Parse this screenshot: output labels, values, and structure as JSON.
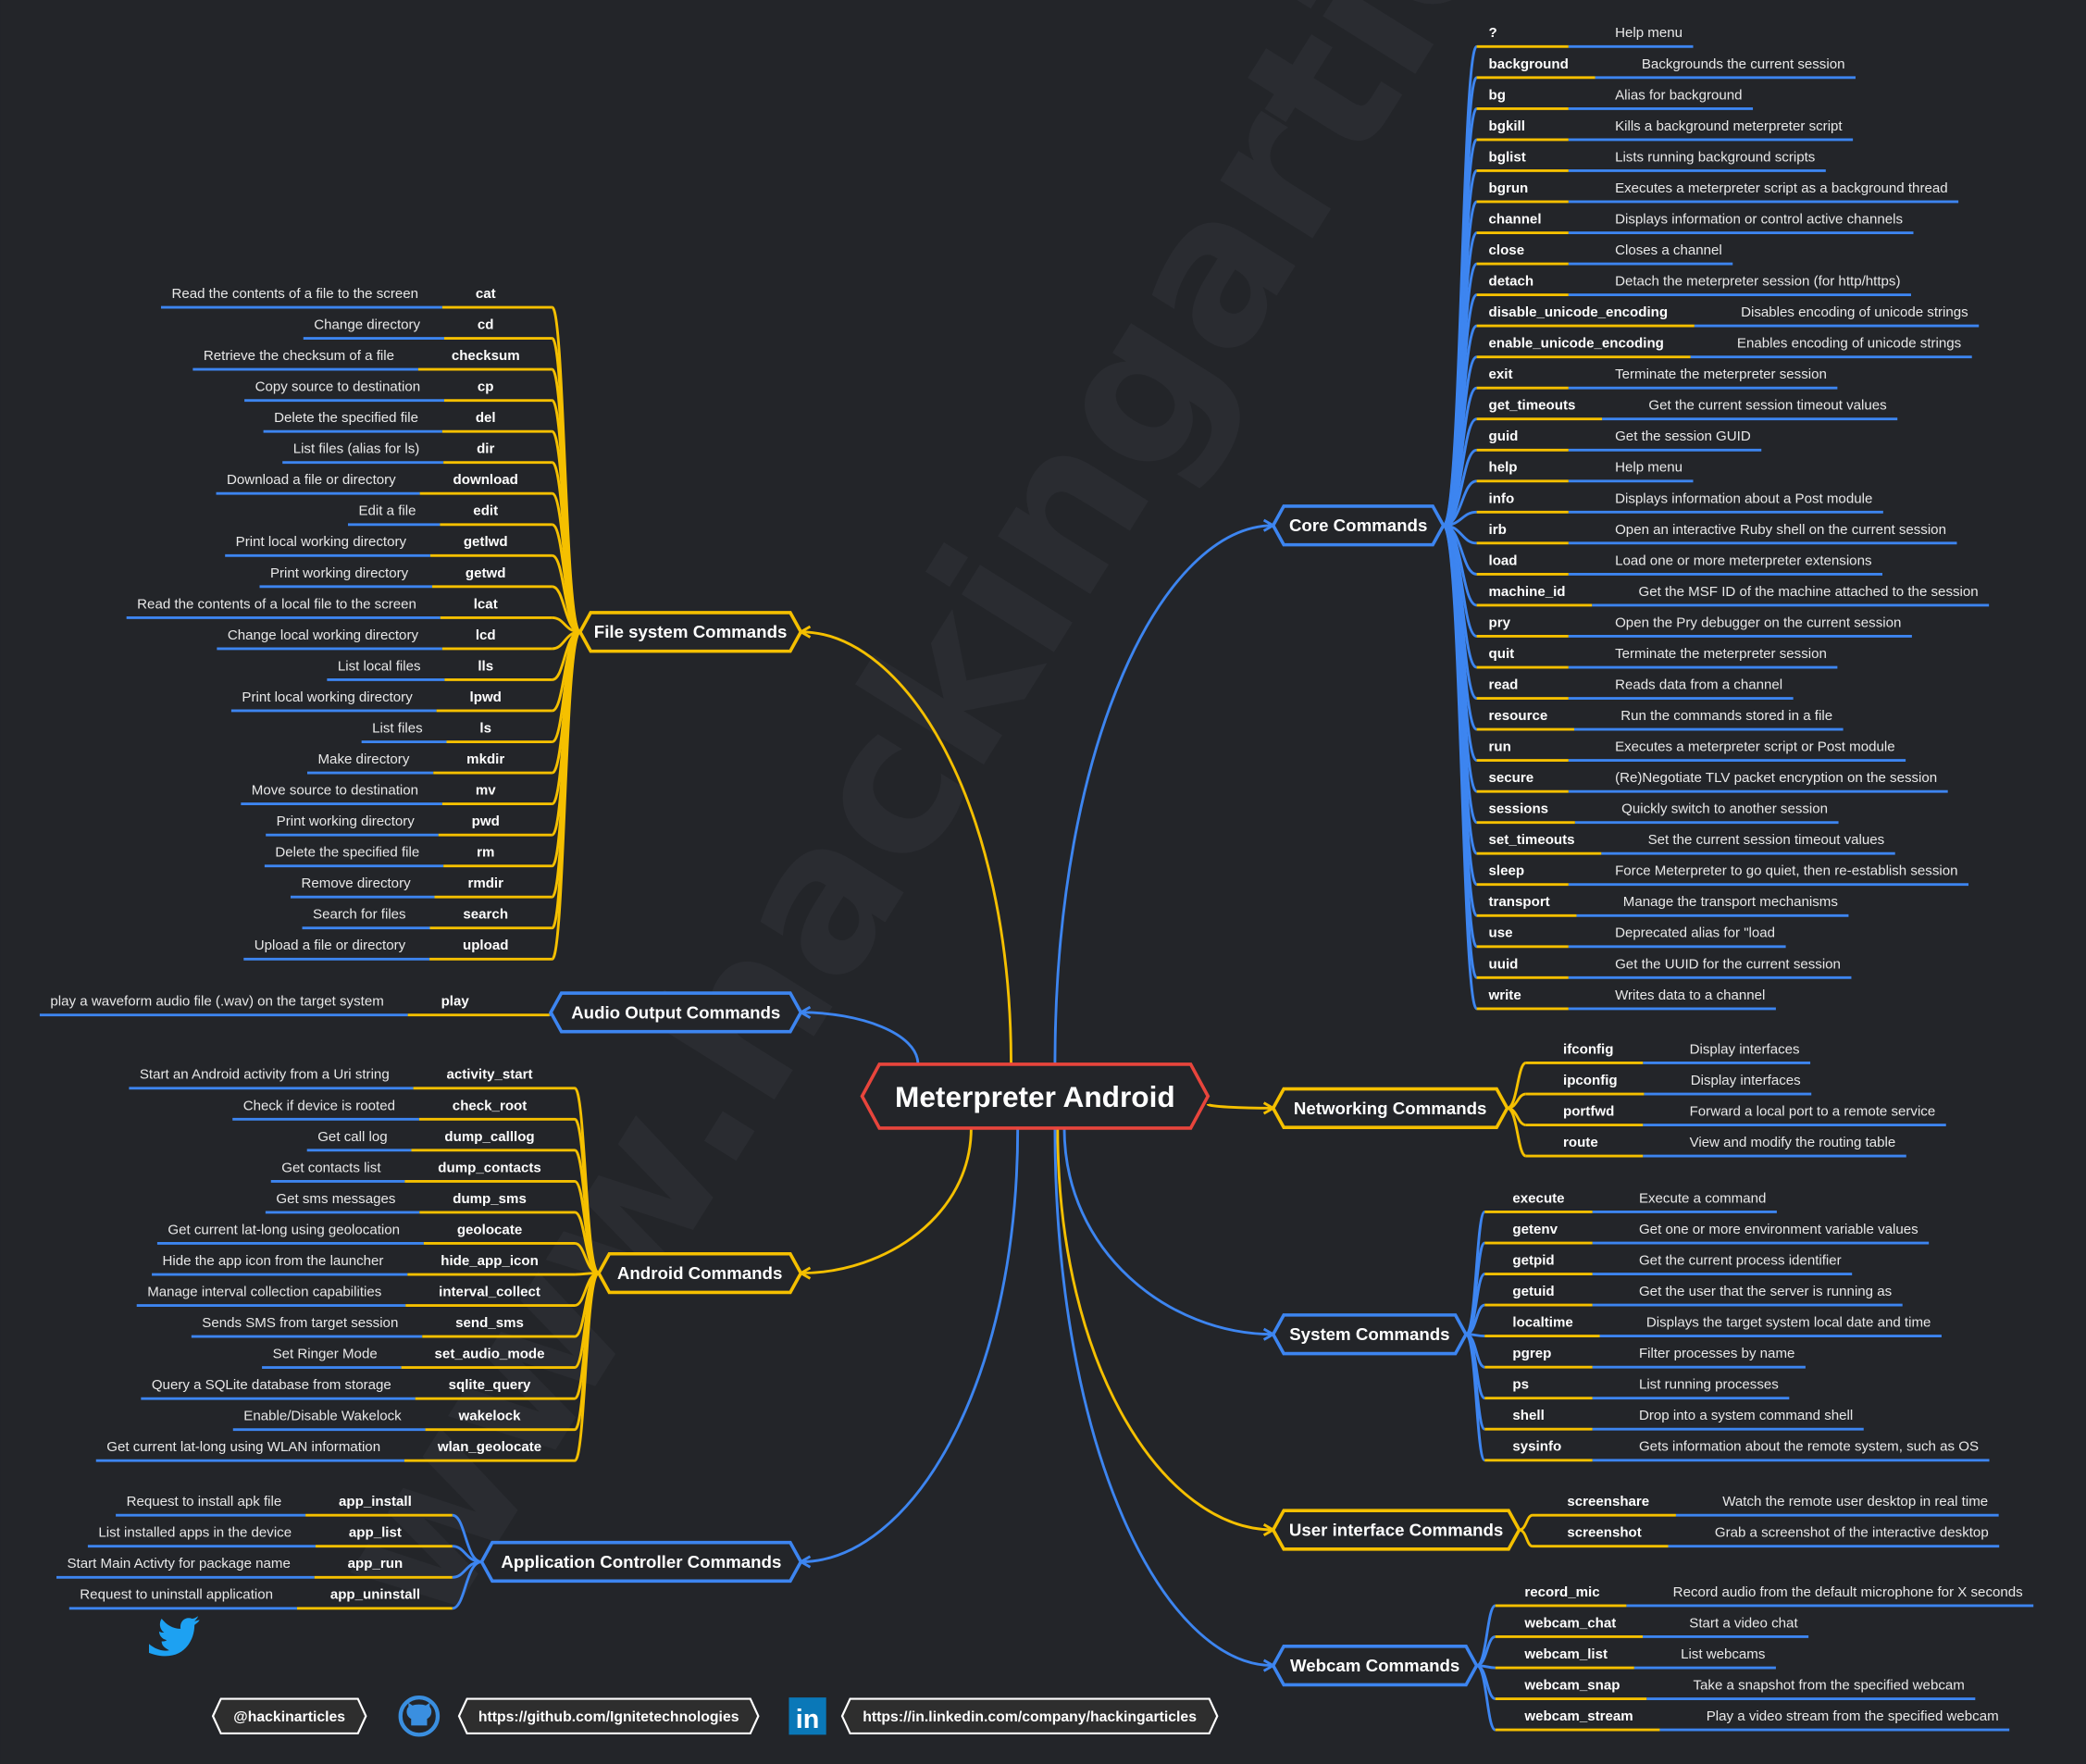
{
  "colors": {
    "background": "#232529",
    "gold": "#f5c000",
    "blue": "#3d85f0",
    "root_border": "#e8453c",
    "footer_border": "#ffffff",
    "twitter": "#1da1f2",
    "linkedin": "#0a78b8"
  },
  "watermark": "www.hackingarticles.in",
  "root": {
    "label": "Meterpreter Android"
  },
  "branches": {
    "core": {
      "label": "Core Commands",
      "color": "blue",
      "items": [
        {
          "cmd": "?",
          "desc": "Help menu"
        },
        {
          "cmd": "background",
          "desc": "Backgrounds the current session"
        },
        {
          "cmd": "bg",
          "desc": "Alias for background"
        },
        {
          "cmd": "bgkill",
          "desc": "Kills a background meterpreter script"
        },
        {
          "cmd": "bglist",
          "desc": "Lists running background scripts"
        },
        {
          "cmd": "bgrun",
          "desc": "Executes a meterpreter script as a background thread"
        },
        {
          "cmd": "channel",
          "desc": "Displays information or control active channels"
        },
        {
          "cmd": "close",
          "desc": "Closes a channel"
        },
        {
          "cmd": "detach",
          "desc": "Detach the meterpreter session (for http/https)"
        },
        {
          "cmd": "disable_unicode_encoding",
          "desc": "Disables encoding of unicode strings"
        },
        {
          "cmd": "enable_unicode_encoding",
          "desc": "Enables encoding of unicode strings"
        },
        {
          "cmd": "exit",
          "desc": "Terminate the meterpreter session"
        },
        {
          "cmd": "get_timeouts",
          "desc": "Get the current session timeout values"
        },
        {
          "cmd": "guid",
          "desc": "Get the session GUID"
        },
        {
          "cmd": "help",
          "desc": "Help menu"
        },
        {
          "cmd": "info",
          "desc": "Displays information about a Post module"
        },
        {
          "cmd": "irb",
          "desc": "Open an interactive Ruby shell on the current session"
        },
        {
          "cmd": "load",
          "desc": "Load one or more meterpreter extensions"
        },
        {
          "cmd": "machine_id",
          "desc": "Get the MSF ID of the machine attached to the session"
        },
        {
          "cmd": "pry",
          "desc": "Open the Pry debugger on the current session"
        },
        {
          "cmd": "quit",
          "desc": "Terminate the meterpreter session"
        },
        {
          "cmd": "read",
          "desc": "Reads data from a channel"
        },
        {
          "cmd": "resource",
          "desc": "Run the commands stored in a file"
        },
        {
          "cmd": "run",
          "desc": "Executes a meterpreter script or Post module"
        },
        {
          "cmd": "secure",
          "desc": "(Re)Negotiate TLV packet encryption on the session"
        },
        {
          "cmd": "sessions",
          "desc": "Quickly switch to another session"
        },
        {
          "cmd": "set_timeouts",
          "desc": "Set the current session timeout values"
        },
        {
          "cmd": "sleep",
          "desc": "Force Meterpreter to go quiet, then re-establish session"
        },
        {
          "cmd": "transport",
          "desc": "Manage the transport mechanisms"
        },
        {
          "cmd": "use",
          "desc": "Deprecated alias for \"load"
        },
        {
          "cmd": "uuid",
          "desc": "Get the UUID for the current session"
        },
        {
          "cmd": "write",
          "desc": "Writes data to a channel"
        }
      ]
    },
    "networking": {
      "label": "Networking Commands",
      "color": "gold",
      "items": [
        {
          "cmd": "ifconfig",
          "desc": "Display interfaces"
        },
        {
          "cmd": "ipconfig",
          "desc": "Display interfaces"
        },
        {
          "cmd": "portfwd",
          "desc": "Forward a local port to a remote service"
        },
        {
          "cmd": "route",
          "desc": "View and modify the routing table"
        }
      ]
    },
    "system": {
      "label": "System Commands",
      "color": "blue",
      "items": [
        {
          "cmd": "execute",
          "desc": "Execute a command"
        },
        {
          "cmd": "getenv",
          "desc": "Get one or more environment variable values"
        },
        {
          "cmd": "getpid",
          "desc": "Get the current process identifier"
        },
        {
          "cmd": "getuid",
          "desc": "Get the user that the server is running as"
        },
        {
          "cmd": "localtime",
          "desc": "Displays the target system local date and time"
        },
        {
          "cmd": "pgrep",
          "desc": "Filter processes by name"
        },
        {
          "cmd": "ps",
          "desc": "List running processes"
        },
        {
          "cmd": "shell",
          "desc": "Drop into a system command shell"
        },
        {
          "cmd": "sysinfo",
          "desc": "Gets information about the remote system, such as OS"
        }
      ]
    },
    "ui": {
      "label": "User interface Commands",
      "color": "gold",
      "items": [
        {
          "cmd": "screenshare",
          "desc": "Watch the remote user desktop in real time"
        },
        {
          "cmd": "screenshot",
          "desc": "Grab a screenshot of the interactive desktop"
        }
      ]
    },
    "webcam": {
      "label": "Webcam Commands",
      "color": "blue",
      "items": [
        {
          "cmd": "record_mic",
          "desc": "Record audio from the default microphone for X seconds"
        },
        {
          "cmd": "webcam_chat",
          "desc": "Start a video chat"
        },
        {
          "cmd": "webcam_list",
          "desc": "List webcams"
        },
        {
          "cmd": "webcam_snap",
          "desc": "Take a snapshot from the specified webcam"
        },
        {
          "cmd": "webcam_stream",
          "desc": "Play a video stream from the specified webcam"
        }
      ]
    },
    "filesystem": {
      "label": "File system Commands",
      "color": "gold",
      "items": [
        {
          "cmd": "cat",
          "desc": "Read the contents of a file to the screen"
        },
        {
          "cmd": "cd",
          "desc": "Change directory"
        },
        {
          "cmd": "checksum",
          "desc": "Retrieve the checksum of a file"
        },
        {
          "cmd": "cp",
          "desc": "Copy source to destination"
        },
        {
          "cmd": "del",
          "desc": "Delete the specified file"
        },
        {
          "cmd": "dir",
          "desc": "List files (alias for ls)"
        },
        {
          "cmd": "download",
          "desc": "Download a file or directory"
        },
        {
          "cmd": "edit",
          "desc": "Edit a file"
        },
        {
          "cmd": "getlwd",
          "desc": "Print local working directory"
        },
        {
          "cmd": "getwd",
          "desc": "Print working directory"
        },
        {
          "cmd": "lcat",
          "desc": "Read the contents of a local file to the screen"
        },
        {
          "cmd": "lcd",
          "desc": "Change local working directory"
        },
        {
          "cmd": "lls",
          "desc": "List local files"
        },
        {
          "cmd": "lpwd",
          "desc": "Print local working directory"
        },
        {
          "cmd": "ls",
          "desc": "List files"
        },
        {
          "cmd": "mkdir",
          "desc": "Make directory"
        },
        {
          "cmd": "mv",
          "desc": "Move source to destination"
        },
        {
          "cmd": "pwd",
          "desc": "Print working directory"
        },
        {
          "cmd": "rm",
          "desc": "Delete the specified file"
        },
        {
          "cmd": "rmdir",
          "desc": "Remove directory"
        },
        {
          "cmd": "search",
          "desc": "Search for files"
        },
        {
          "cmd": "upload",
          "desc": "Upload a file or directory"
        }
      ]
    },
    "audio": {
      "label": "Audio Output Commands",
      "color": "blue",
      "items": [
        {
          "cmd": "play",
          "desc": "play a waveform audio file (.wav) on the target system"
        }
      ]
    },
    "android": {
      "label": "Android Commands",
      "color": "gold",
      "items": [
        {
          "cmd": "activity_start",
          "desc": "Start an Android activity from a Uri string"
        },
        {
          "cmd": "check_root",
          "desc": "Check if device is rooted"
        },
        {
          "cmd": "dump_calllog",
          "desc": "Get call log"
        },
        {
          "cmd": "dump_contacts",
          "desc": "Get contacts list"
        },
        {
          "cmd": "dump_sms",
          "desc": "Get sms messages"
        },
        {
          "cmd": "geolocate",
          "desc": "Get current lat-long using geolocation"
        },
        {
          "cmd": "hide_app_icon",
          "desc": "Hide the app icon from the launcher"
        },
        {
          "cmd": "interval_collect",
          "desc": "Manage interval collection capabilities"
        },
        {
          "cmd": "send_sms",
          "desc": "Sends SMS from target session"
        },
        {
          "cmd": "set_audio_mode",
          "desc": "Set Ringer Mode"
        },
        {
          "cmd": "sqlite_query",
          "desc": "Query a SQLite database from storage"
        },
        {
          "cmd": "wakelock",
          "desc": "Enable/Disable Wakelock"
        },
        {
          "cmd": "wlan_geolocate",
          "desc": "Get current lat-long using WLAN information"
        }
      ]
    },
    "appcontrol": {
      "label": "Application Controller Commands",
      "color": "blue",
      "items": [
        {
          "cmd": "app_install",
          "desc": "Request to install apk file"
        },
        {
          "cmd": "app_list",
          "desc": "List installed apps in the device"
        },
        {
          "cmd": "app_run",
          "desc": "Start Main Activty for package name"
        },
        {
          "cmd": "app_uninstall",
          "desc": "Request to uninstall application"
        }
      ]
    }
  },
  "footer": {
    "twitter": {
      "icon": "twitter-icon",
      "label": "@hackinarticles"
    },
    "github": {
      "icon": "github-icon",
      "label": "https://github.com/Ignitetechnologies"
    },
    "linkedin": {
      "icon": "linkedin-icon",
      "label": "https://in.linkedin.com/company/hackingarticles"
    }
  }
}
